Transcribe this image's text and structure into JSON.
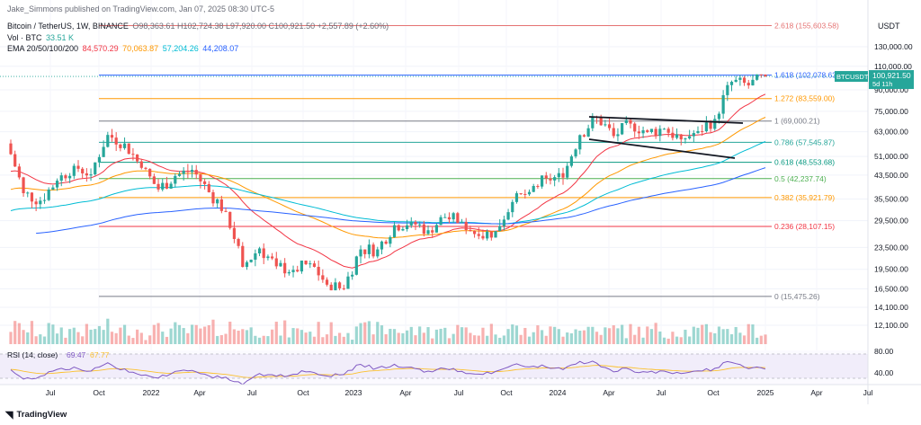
{
  "header": {
    "author": "Jake_Simmons published on TradingView.com, Jan 07, 2025 08:30 UTC-5",
    "symbol": "Bitcoin / TetherUS, 1W, BINANCE",
    "ohlc": "O98,363.61 H102,724.38 L97,920.00 C100,921.50 +2,557.89 (+2.60%)",
    "vol_label": "Vol · BTC",
    "vol_value": "33.51 K",
    "ema_label": "EMA 20/50/100/200",
    "ema_values": [
      {
        "text": "84,570.29",
        "color": "#f23645"
      },
      {
        "text": "70,063.87",
        "color": "#ff9800"
      },
      {
        "text": "57,204.26",
        "color": "#00bcd4"
      },
      {
        "text": "44,208.07",
        "color": "#2962ff"
      }
    ]
  },
  "currency": "USDT",
  "footer": {
    "brand": "TradingView"
  },
  "chart_data": {
    "type": "candlestick",
    "symbol": "BTCUSDT",
    "last_price": "100,921.50",
    "countdown": "5d 11h",
    "y_scale": "log",
    "y_ticks": [
      "130,000.00",
      "110,000.00",
      "90,000.00",
      "75,000.00",
      "63,000.00",
      "51,000.00",
      "43,500.00",
      "35,500.00",
      "29,500.00",
      "23,500.00",
      "19,500.00",
      "16,500.00",
      "14,100.00",
      "12,100.00"
    ],
    "x_ticks": [
      "Jul",
      "Oct",
      "2022",
      "Apr",
      "Jul",
      "Oct",
      "2023",
      "Apr",
      "Jul",
      "Oct",
      "2024",
      "Apr",
      "Jul",
      "Oct",
      "2025",
      "Apr",
      "Jul"
    ],
    "fib_levels": [
      {
        "label": "2.618 (155,603.58)",
        "value": 155603.58,
        "color": "#e57373"
      },
      {
        "label": "1.618 (102,078.63)",
        "value": 102078.63,
        "color": "#2962ff"
      },
      {
        "label": "1.272 (83,559.00)",
        "value": 83559.0,
        "color": "#ff9800"
      },
      {
        "label": "1 (69,000.21)",
        "value": 69000.21,
        "color": "#787b86"
      },
      {
        "label": "0.786 (57,545.87)",
        "value": 57545.87,
        "color": "#26a69a"
      },
      {
        "label": "0.618 (48,553.68)",
        "value": 48553.68,
        "color": "#089981"
      },
      {
        "label": "0.5 (42,237.74)",
        "value": 42237.74,
        "color": "#4caf50"
      },
      {
        "label": "0.382 (35,921.79)",
        "value": 35921.79,
        "color": "#ff9800"
      },
      {
        "label": "0.236 (28,107.15)",
        "value": 28107.15,
        "color": "#f23645"
      },
      {
        "label": "0 (15,475.26)",
        "value": 15475.26,
        "color": "#787b86"
      }
    ],
    "candles_monthly_close": [
      {
        "x": "2021-05",
        "o": 57000,
        "h": 59500,
        "l": 30000,
        "c": 37300
      },
      {
        "x": "2021-06",
        "o": 37300,
        "h": 41300,
        "l": 28800,
        "c": 35000
      },
      {
        "x": "2021-07",
        "o": 35000,
        "h": 42300,
        "l": 29300,
        "c": 41500
      },
      {
        "x": "2021-08",
        "o": 41500,
        "h": 50500,
        "l": 37300,
        "c": 47100
      },
      {
        "x": "2021-09",
        "o": 47100,
        "h": 52900,
        "l": 39600,
        "c": 43800
      },
      {
        "x": "2021-10",
        "o": 43800,
        "h": 67000,
        "l": 43300,
        "c": 61300
      },
      {
        "x": "2021-11",
        "o": 61300,
        "h": 69000,
        "l": 53300,
        "c": 57000
      },
      {
        "x": "2021-12",
        "o": 57000,
        "h": 59000,
        "l": 42000,
        "c": 46300
      },
      {
        "x": "2022-01",
        "o": 46300,
        "h": 48000,
        "l": 32900,
        "c": 38500
      },
      {
        "x": "2022-02",
        "o": 38500,
        "h": 45800,
        "l": 34300,
        "c": 43200
      },
      {
        "x": "2022-03",
        "o": 43200,
        "h": 48200,
        "l": 37200,
        "c": 45500
      },
      {
        "x": "2022-04",
        "o": 45500,
        "h": 47400,
        "l": 37500,
        "c": 37600
      },
      {
        "x": "2022-05",
        "o": 37600,
        "h": 40000,
        "l": 26700,
        "c": 31800
      },
      {
        "x": "2022-06",
        "o": 31800,
        "h": 31900,
        "l": 17600,
        "c": 19900
      },
      {
        "x": "2022-07",
        "o": 19900,
        "h": 24700,
        "l": 18800,
        "c": 23300
      },
      {
        "x": "2022-08",
        "o": 23300,
        "h": 25200,
        "l": 19500,
        "c": 20000
      },
      {
        "x": "2022-09",
        "o": 20000,
        "h": 22800,
        "l": 18200,
        "c": 19400
      },
      {
        "x": "2022-10",
        "o": 19400,
        "h": 21000,
        "l": 18200,
        "c": 20500
      },
      {
        "x": "2022-11",
        "o": 20500,
        "h": 21500,
        "l": 15500,
        "c": 17100
      },
      {
        "x": "2022-12",
        "o": 17100,
        "h": 18400,
        "l": 16300,
        "c": 16500
      },
      {
        "x": "2023-01",
        "o": 16500,
        "h": 23900,
        "l": 16500,
        "c": 23100
      },
      {
        "x": "2023-02",
        "o": 23100,
        "h": 25200,
        "l": 21400,
        "c": 23100
      },
      {
        "x": "2023-03",
        "o": 23100,
        "h": 29200,
        "l": 19500,
        "c": 28400
      },
      {
        "x": "2023-04",
        "o": 28400,
        "h": 31000,
        "l": 26900,
        "c": 29200
      },
      {
        "x": "2023-05",
        "o": 29200,
        "h": 29800,
        "l": 25800,
        "c": 27200
      },
      {
        "x": "2023-06",
        "o": 27200,
        "h": 31400,
        "l": 24800,
        "c": 30400
      },
      {
        "x": "2023-07",
        "o": 30400,
        "h": 31800,
        "l": 28900,
        "c": 29200
      },
      {
        "x": "2023-08",
        "o": 29200,
        "h": 30200,
        "l": 25200,
        "c": 25900
      },
      {
        "x": "2023-09",
        "o": 25900,
        "h": 27400,
        "l": 24900,
        "c": 27000
      },
      {
        "x": "2023-10",
        "o": 27000,
        "h": 35300,
        "l": 26500,
        "c": 34600
      },
      {
        "x": "2023-11",
        "o": 34600,
        "h": 38500,
        "l": 34100,
        "c": 37700
      },
      {
        "x": "2023-12",
        "o": 37700,
        "h": 44700,
        "l": 37600,
        "c": 42300
      },
      {
        "x": "2024-01",
        "o": 42300,
        "h": 48900,
        "l": 38500,
        "c": 42600
      },
      {
        "x": "2024-02",
        "o": 42600,
        "h": 64000,
        "l": 41900,
        "c": 61200
      },
      {
        "x": "2024-03",
        "o": 61200,
        "h": 73800,
        "l": 59000,
        "c": 71300
      },
      {
        "x": "2024-04",
        "o": 71300,
        "h": 72800,
        "l": 59600,
        "c": 60700
      },
      {
        "x": "2024-05",
        "o": 60700,
        "h": 71900,
        "l": 56600,
        "c": 67500
      },
      {
        "x": "2024-06",
        "o": 67500,
        "h": 72000,
        "l": 58400,
        "c": 62800
      },
      {
        "x": "2024-07",
        "o": 62800,
        "h": 70000,
        "l": 53500,
        "c": 64600
      },
      {
        "x": "2024-08",
        "o": 64600,
        "h": 65600,
        "l": 49000,
        "c": 59000
      },
      {
        "x": "2024-09",
        "o": 59000,
        "h": 66500,
        "l": 52500,
        "c": 63300
      },
      {
        "x": "2024-10",
        "o": 63300,
        "h": 73600,
        "l": 58900,
        "c": 70200
      },
      {
        "x": "2024-11",
        "o": 70200,
        "h": 99600,
        "l": 66800,
        "c": 96400
      },
      {
        "x": "2024-12",
        "o": 96400,
        "h": 108400,
        "l": 90500,
        "c": 93500
      },
      {
        "x": "2025-01",
        "o": 93500,
        "h": 102700,
        "l": 91800,
        "c": 100921.5
      }
    ],
    "ema_series": [
      "EMA 20",
      "EMA 50",
      "EMA 100",
      "EMA 200"
    ],
    "rsi": {
      "label": "RSI (14, close)",
      "value": "69.47",
      "ma_value": "67.77",
      "y_ticks": [
        "80.00",
        "40.00"
      ]
    }
  }
}
